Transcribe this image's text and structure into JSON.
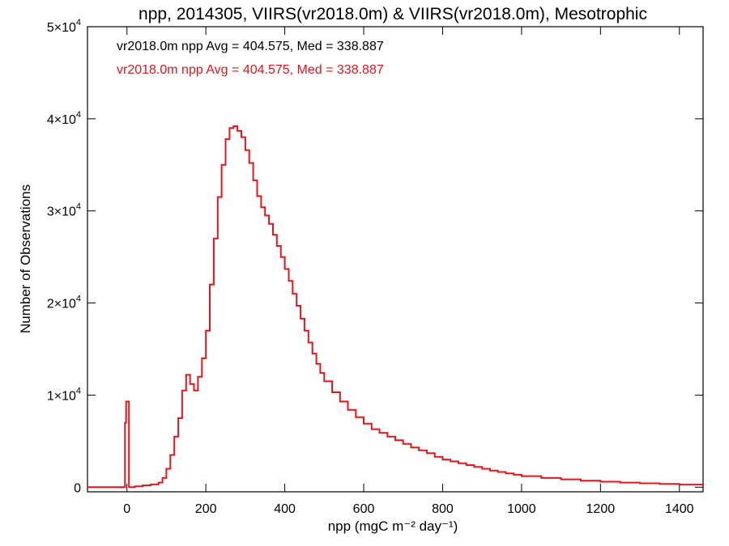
{
  "chart_data": {
    "type": "histogram-step",
    "title": "npp, 2014305, VIIRS(vr2018.0m) & VIIRS(vr2018.0m), Mesotrophic",
    "xlabel": "npp (mgC m⁻² day⁻¹)",
    "ylabel": "Number of Observations",
    "xlim": [
      -100,
      1460
    ],
    "ylim": [
      -500,
      50000
    ],
    "grid": false,
    "x_ticks": [
      0,
      200,
      400,
      600,
      800,
      1000,
      1200,
      1400
    ],
    "x_tick_labels": [
      "0",
      "200",
      "400",
      "600",
      "800",
      "1000",
      "1200",
      "1400"
    ],
    "y_ticks": [
      0,
      10000,
      20000,
      30000,
      40000,
      50000
    ],
    "y_tick_labels": [
      {
        "mant": "0",
        "exp": ""
      },
      {
        "mant": "1×10",
        "exp": "4"
      },
      {
        "mant": "2×10",
        "exp": "4"
      },
      {
        "mant": "3×10",
        "exp": "4"
      },
      {
        "mant": "4×10",
        "exp": "4"
      },
      {
        "mant": "5×10",
        "exp": "4"
      }
    ],
    "annotations": [
      {
        "text": "vr2018.0m npp Avg = 404.575, Med = 338.887",
        "color": "#000000"
      },
      {
        "text": "vr2018.0m npp Avg = 404.575, Med = 338.887",
        "color": "#e8141b"
      }
    ],
    "series": [
      {
        "color": "#e8141b",
        "points": [
          [
            -100,
            0
          ],
          [
            -5,
            0
          ],
          [
            -5,
            7000
          ],
          [
            -2,
            7000
          ],
          [
            -2,
            9300
          ],
          [
            5,
            9300
          ],
          [
            5,
            0
          ],
          [
            10,
            0
          ],
          [
            20,
            100
          ],
          [
            40,
            200
          ],
          [
            60,
            300
          ],
          [
            80,
            500
          ],
          [
            90,
            1000
          ],
          [
            100,
            2000
          ],
          [
            110,
            3500
          ],
          [
            120,
            5500
          ],
          [
            130,
            7500
          ],
          [
            140,
            10500
          ],
          [
            150,
            12200
          ],
          [
            160,
            11200
          ],
          [
            170,
            10500
          ],
          [
            180,
            12000
          ],
          [
            190,
            14000
          ],
          [
            200,
            17000
          ],
          [
            210,
            22000
          ],
          [
            220,
            27000
          ],
          [
            230,
            31500
          ],
          [
            240,
            35000
          ],
          [
            250,
            37800
          ],
          [
            260,
            39000
          ],
          [
            270,
            39200
          ],
          [
            280,
            38700
          ],
          [
            290,
            38000
          ],
          [
            300,
            36600
          ],
          [
            310,
            35200
          ],
          [
            320,
            33300
          ],
          [
            330,
            31600
          ],
          [
            340,
            30400
          ],
          [
            350,
            29500
          ],
          [
            360,
            28600
          ],
          [
            370,
            27400
          ],
          [
            380,
            26200
          ],
          [
            390,
            25000
          ],
          [
            400,
            23700
          ],
          [
            410,
            22400
          ],
          [
            420,
            21000
          ],
          [
            430,
            19700
          ],
          [
            440,
            18300
          ],
          [
            450,
            17000
          ],
          [
            460,
            15700
          ],
          [
            470,
            14500
          ],
          [
            480,
            13400
          ],
          [
            490,
            12400
          ],
          [
            500,
            11500
          ],
          [
            520,
            10300
          ],
          [
            540,
            9300
          ],
          [
            560,
            8400
          ],
          [
            580,
            7600
          ],
          [
            600,
            6900
          ],
          [
            620,
            6300
          ],
          [
            640,
            5900
          ],
          [
            660,
            5500
          ],
          [
            680,
            5100
          ],
          [
            700,
            4700
          ],
          [
            720,
            4300
          ],
          [
            740,
            4000
          ],
          [
            760,
            3700
          ],
          [
            780,
            3300
          ],
          [
            800,
            3000
          ],
          [
            820,
            2800
          ],
          [
            840,
            2600
          ],
          [
            860,
            2400
          ],
          [
            880,
            2200
          ],
          [
            900,
            2000
          ],
          [
            920,
            1800
          ],
          [
            940,
            1650
          ],
          [
            960,
            1500
          ],
          [
            980,
            1350
          ],
          [
            1000,
            1200
          ],
          [
            1050,
            1000
          ],
          [
            1100,
            850
          ],
          [
            1150,
            700
          ],
          [
            1200,
            600
          ],
          [
            1250,
            500
          ],
          [
            1300,
            420
          ],
          [
            1350,
            350
          ],
          [
            1400,
            280
          ],
          [
            1460,
            200
          ]
        ]
      }
    ]
  }
}
